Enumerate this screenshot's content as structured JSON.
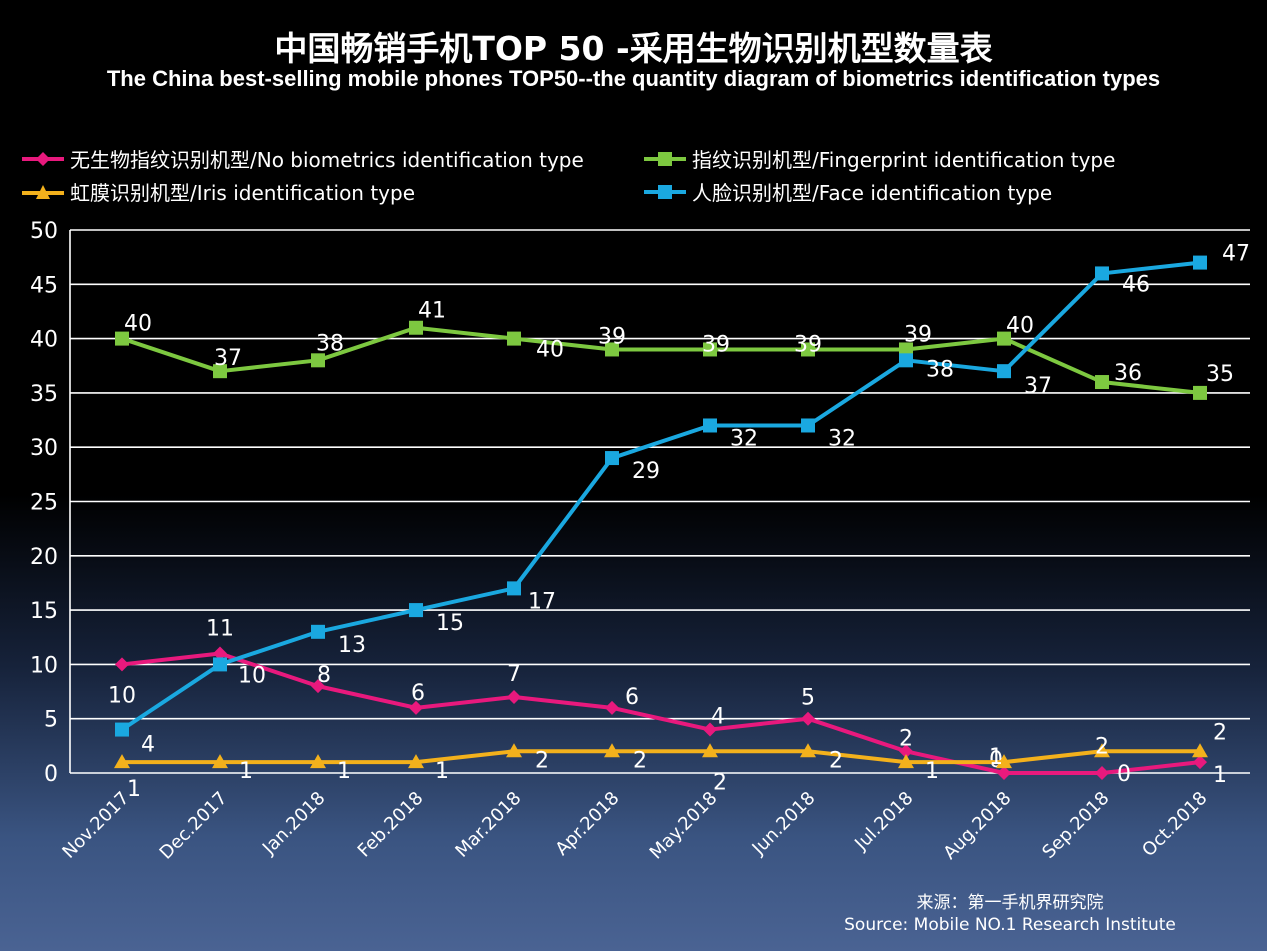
{
  "chart_data": {
    "type": "line",
    "title": "中国畅销手机TOP 50 -采用生物识别机型数量表",
    "subtitle": "The China best-selling mobile phones TOP50--the quantity diagram of biometrics identification types",
    "categories": [
      "Nov.2017",
      "Dec.2017",
      "Jan.2018",
      "Feb.2018",
      "Mar.2018",
      "Apr.2018",
      "May.2018",
      "Jun.2018",
      "Jul.2018",
      "Aug.2018",
      "Sep.2018",
      "Oct.2018"
    ],
    "series": [
      {
        "name": "无生物指纹识别机型/No biometrics identification type",
        "color": "#e8197d",
        "marker": "diamond",
        "values": [
          10,
          11,
          8,
          6,
          7,
          6,
          4,
          5,
          2,
          0,
          0,
          1
        ]
      },
      {
        "name": "指纹识别机型/Fingerprint identification type",
        "color": "#7dc840",
        "marker": "square",
        "values": [
          40,
          37,
          38,
          41,
          40,
          39,
          39,
          39,
          39,
          40,
          36,
          35
        ]
      },
      {
        "name": "虹膜识别机型/Iris identification type",
        "color": "#f3b11c",
        "marker": "triangle",
        "values": [
          1,
          1,
          1,
          1,
          2,
          2,
          2,
          2,
          1,
          1,
          2,
          2
        ]
      },
      {
        "name": "人脸识别机型/Face identification type",
        "color": "#1aa8e0",
        "marker": "square",
        "values": [
          4,
          10,
          13,
          15,
          17,
          29,
          32,
          32,
          38,
          37,
          46,
          47
        ]
      }
    ],
    "y_ticks": [
      "0",
      "5",
      "10",
      "15",
      "20",
      "25",
      "30",
      "35",
      "40",
      "45",
      "50"
    ],
    "ylim": [
      0,
      50
    ],
    "grid": true,
    "legend_position": "top"
  },
  "source": {
    "line1": "来源：第一手机界研究院",
    "line2": "Source: Mobile NO.1 Research Institute"
  }
}
